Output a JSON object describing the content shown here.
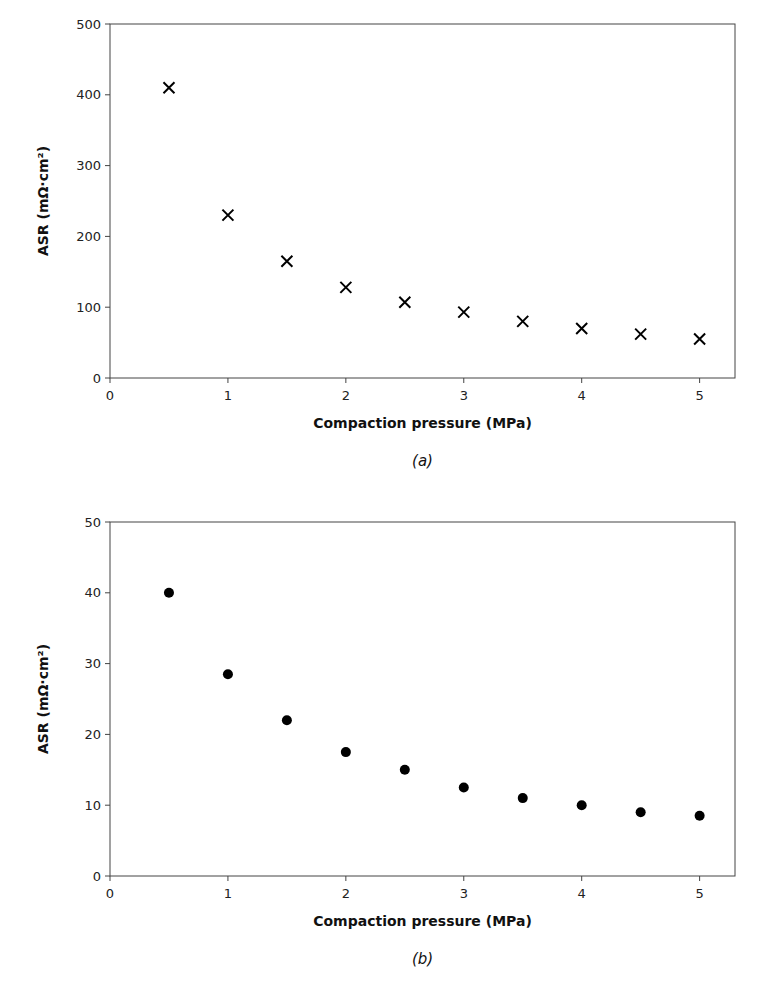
{
  "chart_data": [
    {
      "type": "scatter",
      "title": "(a)",
      "xlabel": "Compaction pressure (MPa)",
      "ylabel": "ASR (mΩ·cm²)",
      "x": [
        0.5,
        1.0,
        1.5,
        2.0,
        2.5,
        3.0,
        3.5,
        4.0,
        4.5,
        5.0
      ],
      "values": [
        410,
        230,
        165,
        128,
        107,
        93,
        80,
        70,
        62,
        55
      ],
      "marker": "x",
      "color": "black",
      "xlim": [
        0,
        5.3
      ],
      "ylim": [
        0,
        500
      ],
      "xticks": [
        0,
        1,
        2,
        3,
        4,
        5
      ],
      "yticks": [
        0,
        100,
        200,
        300,
        400,
        500
      ],
      "grid": false
    },
    {
      "type": "scatter",
      "title": "(b)",
      "xlabel": "Compaction pressure (MPa)",
      "ylabel": "ASR (mΩ·cm²)",
      "x": [
        0.5,
        1.0,
        1.5,
        2.0,
        2.5,
        3.0,
        3.5,
        4.0,
        4.5,
        5.0
      ],
      "values": [
        40,
        28.5,
        22,
        17.5,
        15,
        12.5,
        11,
        10,
        9,
        8.5
      ],
      "marker": "o",
      "color": "black",
      "xlim": [
        0,
        5.3
      ],
      "ylim": [
        0,
        50
      ],
      "xticks": [
        0,
        1,
        2,
        3,
        4,
        5
      ],
      "yticks": [
        0,
        10,
        20,
        30,
        40,
        50
      ],
      "grid": false
    }
  ]
}
